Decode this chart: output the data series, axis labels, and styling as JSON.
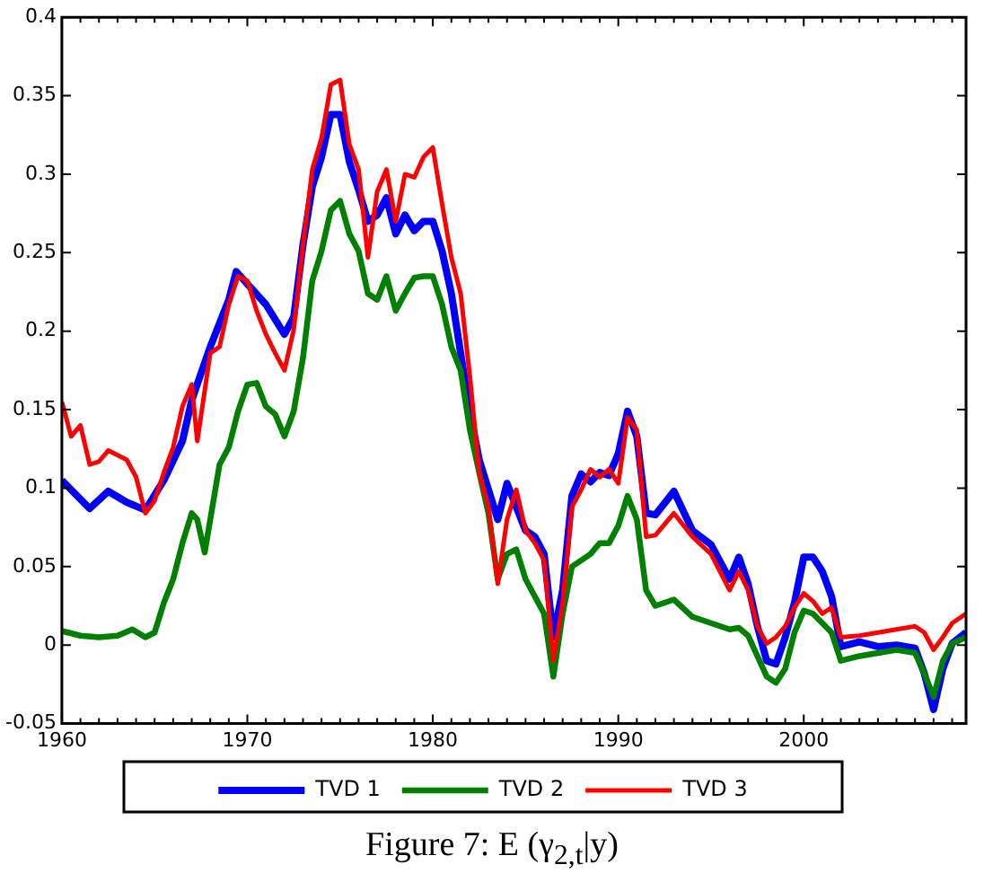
{
  "chart_data": {
    "type": "line",
    "annotations": [
      "Figure 7: E (γ$_{2,t}$|y)"
    ],
    "xlim": [
      1960,
      2008.75
    ],
    "xticks": [
      1960,
      {
        "value": 1961,
        "label": null
      },
      {
        "value": 1962,
        "label": null
      },
      {
        "value": 1963,
        "label": null
      },
      {
        "value": 1964,
        "label": null
      },
      {
        "value": 1965,
        "label": null
      },
      {
        "value": 1966,
        "label": null
      },
      {
        "value": 1967,
        "label": null
      },
      {
        "value": 1968,
        "label": null
      },
      {
        "value": 1969,
        "label": null
      },
      1970,
      {
        "value": 1971,
        "label": null
      },
      {
        "value": 1972,
        "label": null
      },
      {
        "value": 1973,
        "label": null
      },
      {
        "value": 1974,
        "label": null
      },
      {
        "value": 1975,
        "label": null
      },
      {
        "value": 1976,
        "label": null
      },
      {
        "value": 1977,
        "label": null
      },
      {
        "value": 1978,
        "label": null
      },
      {
        "value": 1979,
        "label": null
      },
      1980,
      {
        "value": 1981,
        "label": null
      },
      {
        "value": 1982,
        "label": null
      },
      {
        "value": 1983,
        "label": null
      },
      {
        "value": 1984,
        "label": null
      },
      {
        "value": 1985,
        "label": null
      },
      {
        "value": 1986,
        "label": null
      },
      {
        "value": 1987,
        "label": null
      },
      {
        "value": 1988,
        "label": null
      },
      {
        "value": 1989,
        "label": null
      },
      1990,
      {
        "value": 1991,
        "label": null
      },
      {
        "value": 1992,
        "label": null
      },
      {
        "value": 1993,
        "label": null
      },
      {
        "value": 1994,
        "label": null
      },
      {
        "value": 1995,
        "label": null
      },
      {
        "value": 1996,
        "label": null
      },
      {
        "value": 1997,
        "label": null
      },
      {
        "value": 1998,
        "label": null
      },
      {
        "value": 1999,
        "label": null
      },
      2000,
      {
        "value": 2001,
        "label": null
      },
      {
        "value": 2002,
        "label": null
      },
      {
        "value": 2003,
        "label": null
      },
      {
        "value": 2004,
        "label": null
      },
      {
        "value": 2005,
        "label": null
      },
      {
        "value": 2006,
        "label": null
      },
      {
        "value": 2007,
        "label": null
      },
      {
        "value": 2008,
        "label": null
      }
    ],
    "ylim": [
      -0.05,
      0.4
    ],
    "yticks": [
      -0.05,
      0,
      0.05,
      0.1,
      0.15,
      0.2,
      0.25,
      0.3,
      0.35,
      0.4
    ],
    "legend": "bottom",
    "marker": "none",
    "line_style": "solid",
    "series": [
      {
        "name": "TVD 1",
        "color": "#0000ff",
        "x": [
          1960,
          1961.5,
          1962.5,
          1963.5,
          1964.5,
          1965.5,
          1966.5,
          1967,
          1968,
          1969,
          1969.4,
          1971,
          1972,
          1972.5,
          1973,
          1973.5,
          1974,
          1974.5,
          1975,
          1975.5,
          1976,
          1976.5,
          1977,
          1977.5,
          1978,
          1978.5,
          1979,
          1979.5,
          1980,
          1980.5,
          1981,
          1981.5,
          1982,
          1982.5,
          1983,
          1983.5,
          1984,
          1984.5,
          1985,
          1985.5,
          1986,
          1986.5,
          1987,
          1987.5,
          1988,
          1988.5,
          1989,
          1989.5,
          1990,
          1990.5,
          1991,
          1991.5,
          1992,
          1993,
          1994,
          1995,
          1996,
          1996.5,
          1997,
          1997.5,
          1998,
          1998.5,
          1999,
          1999.5,
          2000,
          2000.5,
          2001,
          2001.5,
          2002,
          2003,
          2004,
          2005,
          2006,
          2006.5,
          2007,
          2007.5,
          2008,
          2008.75
        ],
        "values": [
          0.105,
          0.087,
          0.098,
          0.091,
          0.086,
          0.105,
          0.13,
          0.156,
          0.19,
          0.22,
          0.238,
          0.217,
          0.198,
          0.209,
          0.255,
          0.292,
          0.311,
          0.338,
          0.338,
          0.308,
          0.29,
          0.27,
          0.274,
          0.285,
          0.262,
          0.274,
          0.264,
          0.27,
          0.27,
          0.251,
          0.224,
          0.186,
          0.149,
          0.118,
          0.099,
          0.08,
          0.103,
          0.088,
          0.073,
          0.069,
          0.058,
          0.005,
          0.035,
          0.095,
          0.109,
          0.104,
          0.11,
          0.108,
          0.122,
          0.149,
          0.133,
          0.084,
          0.083,
          0.098,
          0.073,
          0.064,
          0.042,
          0.056,
          0.039,
          0.012,
          -0.01,
          -0.012,
          0.005,
          0.027,
          0.056,
          0.056,
          0.047,
          0.031,
          -0.001,
          0.002,
          -0.001,
          0,
          -0.002,
          -0.018,
          -0.041,
          -0.015,
          0.001,
          0.008
        ]
      },
      {
        "name": "TVD 2",
        "color": "#008000",
        "x": [
          1960,
          1961,
          1962,
          1963,
          1963.8,
          1964.5,
          1965,
          1965.5,
          1966,
          1966.5,
          1967,
          1967.3,
          1967.7,
          1968,
          1968.5,
          1969,
          1969.5,
          1970,
          1970.5,
          1971,
          1971.5,
          1972,
          1972.5,
          1973,
          1973.5,
          1974,
          1974.5,
          1975,
          1975.5,
          1976,
          1976.5,
          1977,
          1977.5,
          1978,
          1978.5,
          1979,
          1979.5,
          1980,
          1980.5,
          1981,
          1981.5,
          1982,
          1982.5,
          1983,
          1983.5,
          1984,
          1984.5,
          1985,
          1985.5,
          1986,
          1986.5,
          1987,
          1987.5,
          1988,
          1988.5,
          1989,
          1989.5,
          1990,
          1990.5,
          1991,
          1991.5,
          1992,
          1993,
          1994,
          1995,
          1996,
          1996.5,
          1997,
          1997.5,
          1998,
          1998.5,
          1999,
          1999.5,
          2000,
          2000.5,
          2001,
          2001.5,
          2002,
          2003,
          2004,
          2005,
          2006,
          2006.5,
          2007,
          2007.5,
          2008,
          2008.75
        ],
        "values": [
          0.009,
          0.006,
          0.005,
          0.006,
          0.01,
          0.005,
          0.008,
          0.027,
          0.042,
          0.065,
          0.084,
          0.08,
          0.059,
          0.08,
          0.115,
          0.126,
          0.149,
          0.166,
          0.167,
          0.152,
          0.147,
          0.133,
          0.149,
          0.183,
          0.232,
          0.251,
          0.277,
          0.283,
          0.262,
          0.251,
          0.224,
          0.22,
          0.235,
          0.213,
          0.224,
          0.234,
          0.235,
          0.235,
          0.217,
          0.19,
          0.175,
          0.137,
          0.11,
          0.084,
          0.042,
          0.058,
          0.061,
          0.042,
          0.031,
          0.02,
          -0.02,
          0.02,
          0.05,
          0.054,
          0.058,
          0.065,
          0.065,
          0.076,
          0.095,
          0.08,
          0.035,
          0.025,
          0.029,
          0.018,
          0.014,
          0.01,
          0.011,
          0.006,
          -0.007,
          -0.02,
          -0.024,
          -0.015,
          0.008,
          0.022,
          0.02,
          0.014,
          0.008,
          -0.01,
          -0.007,
          -0.005,
          -0.003,
          -0.005,
          -0.018,
          -0.033,
          -0.01,
          0.001,
          0.005
        ]
      },
      {
        "name": "TVD 3",
        "color": "#ff0000",
        "x": [
          1960,
          1960.5,
          1961,
          1961.5,
          1962,
          1962.5,
          1963.5,
          1964,
          1964.5,
          1965,
          1965.5,
          1966,
          1966.5,
          1967,
          1967.3,
          1968,
          1968.5,
          1969,
          1969.5,
          1970,
          1970.5,
          1971,
          1971.5,
          1972,
          1972.5,
          1973,
          1973.5,
          1974,
          1974.5,
          1975,
          1975.5,
          1976,
          1976.5,
          1977,
          1977.5,
          1978,
          1978.5,
          1979,
          1979.5,
          1980,
          1980.5,
          1981,
          1981.5,
          1982,
          1982.5,
          1983,
          1983.5,
          1984,
          1984.5,
          1985,
          1985.5,
          1986,
          1986.5,
          1987,
          1987.5,
          1988,
          1988.5,
          1989,
          1989.5,
          1990,
          1990.5,
          1991,
          1991.5,
          1992,
          1993,
          1994,
          1995,
          1996,
          1996.5,
          1997,
          1997.5,
          1998,
          1998.5,
          1999,
          1999.5,
          2000,
          2000.5,
          2001,
          2001.5,
          2002,
          2003,
          2004,
          2005,
          2006,
          2006.5,
          2007,
          2007.5,
          2008,
          2008.75
        ],
        "values": [
          0.155,
          0.133,
          0.14,
          0.115,
          0.117,
          0.124,
          0.118,
          0.107,
          0.084,
          0.092,
          0.11,
          0.126,
          0.152,
          0.166,
          0.13,
          0.186,
          0.19,
          0.217,
          0.235,
          0.232,
          0.213,
          0.198,
          0.186,
          0.175,
          0.201,
          0.255,
          0.303,
          0.323,
          0.357,
          0.36,
          0.319,
          0.303,
          0.247,
          0.289,
          0.303,
          0.27,
          0.3,
          0.298,
          0.311,
          0.317,
          0.281,
          0.247,
          0.224,
          0.171,
          0.11,
          0.088,
          0.039,
          0.08,
          0.099,
          0.073,
          0.065,
          0.054,
          -0.01,
          0.027,
          0.088,
          0.099,
          0.112,
          0.107,
          0.112,
          0.103,
          0.145,
          0.137,
          0.069,
          0.07,
          0.084,
          0.069,
          0.058,
          0.035,
          0.047,
          0.035,
          0.012,
          0.001,
          0.005,
          0.012,
          0.024,
          0.033,
          0.028,
          0.02,
          0.024,
          0.005,
          0.006,
          0.008,
          0.01,
          0.012,
          0.008,
          -0.003,
          0.005,
          0.014,
          0.02
        ]
      }
    ]
  }
}
